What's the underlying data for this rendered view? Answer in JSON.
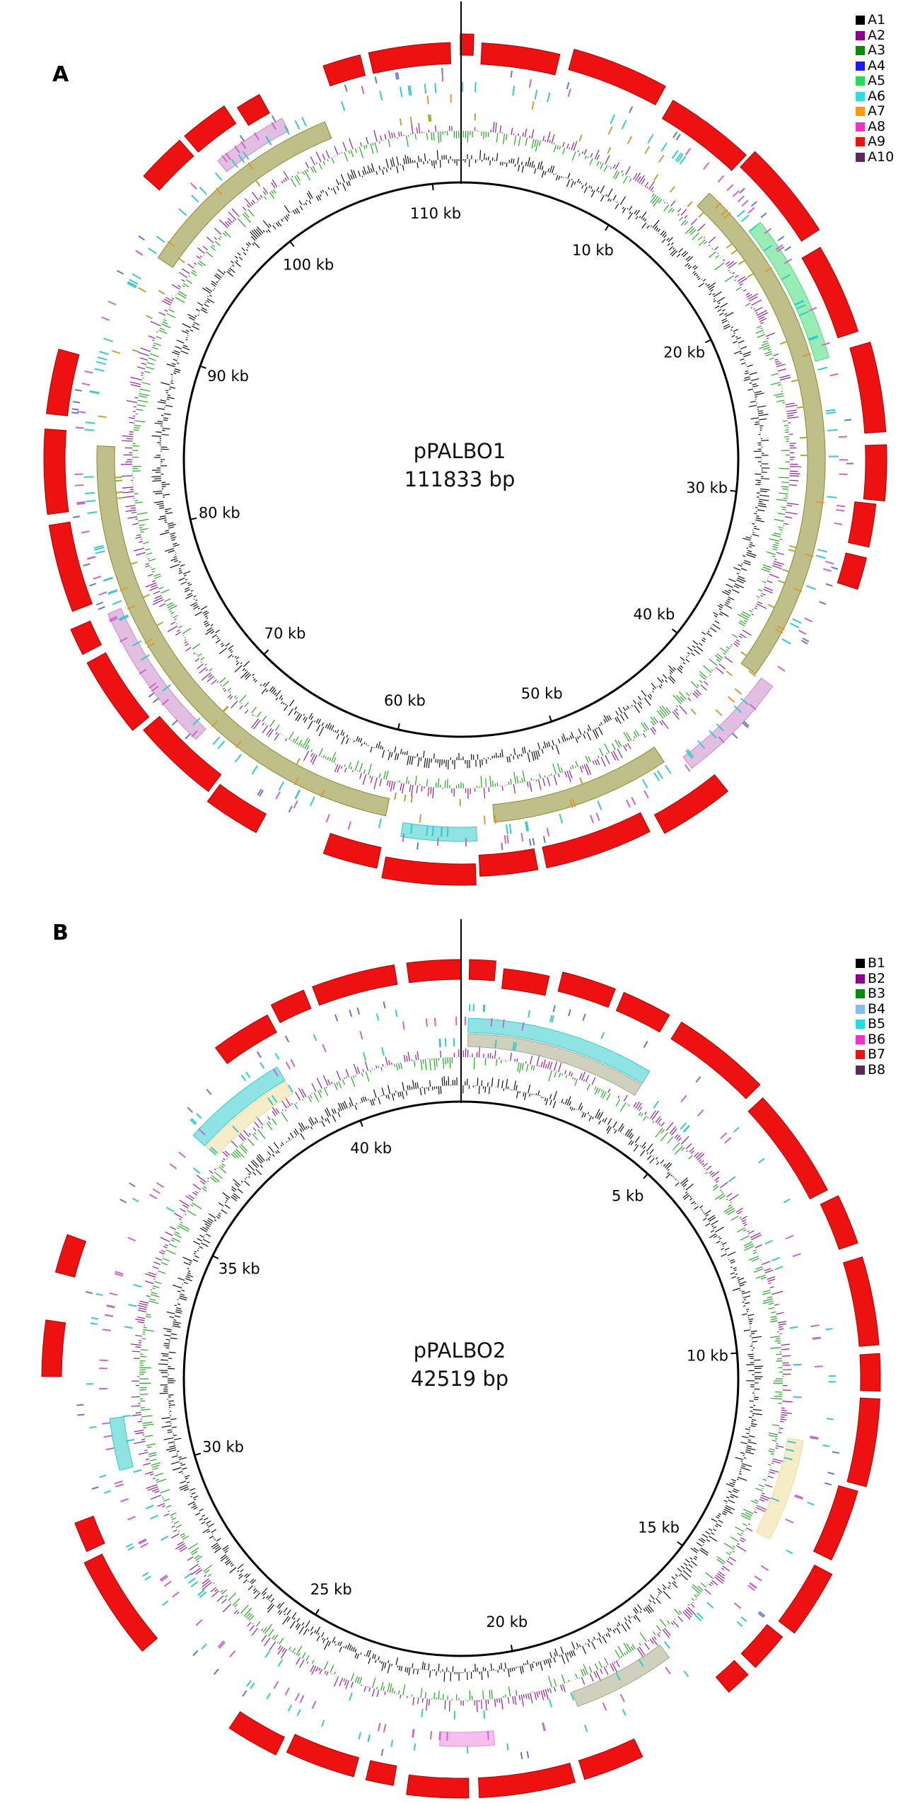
{
  "panels": [
    {
      "letter": "A",
      "plasmid_name": "pPALBO1",
      "length_label": "111833 bp",
      "length_bp": 111833,
      "tick_labels": [
        "10 kb",
        "20 kb",
        "30 kb",
        "40 kb",
        "50 kb",
        "60 kb",
        "70 kb",
        "80 kb",
        "90 kb",
        "100 kb",
        "110 kb"
      ],
      "tick_kb": [
        10,
        20,
        30,
        40,
        50,
        60,
        70,
        80,
        90,
        100,
        110
      ],
      "legend": [
        {
          "label": "A1",
          "color": "#000000"
        },
        {
          "label": "A2",
          "color": "#8b008b"
        },
        {
          "label": "A3",
          "color": "#0a8a0a"
        },
        {
          "label": "A4",
          "color": "#1a1aff"
        },
        {
          "label": "A5",
          "color": "#22dd55"
        },
        {
          "label": "A6",
          "color": "#33dddd"
        },
        {
          "label": "A7",
          "color": "#ff9900"
        },
        {
          "label": "A8",
          "color": "#ee33cc"
        },
        {
          "label": "A9",
          "color": "#ee1111"
        },
        {
          "label": "A10",
          "color": "#5a2a5a"
        }
      ]
    },
    {
      "letter": "B",
      "plasmid_name": "pPALBO2",
      "length_label": "42519 bp",
      "length_bp": 42519,
      "tick_labels": [
        "5 kb",
        "10 kb",
        "15 kb",
        "20 kb",
        "25 kb",
        "30 kb",
        "35 kb",
        "40 kb"
      ],
      "tick_kb": [
        5,
        10,
        15,
        20,
        25,
        30,
        35,
        40
      ],
      "legend": [
        {
          "label": "B1",
          "color": "#000000"
        },
        {
          "label": "B2",
          "color": "#8b008b"
        },
        {
          "label": "B3",
          "color": "#0a8a0a"
        },
        {
          "label": "B4",
          "color": "#88bbee"
        },
        {
          "label": "B5",
          "color": "#22dddd"
        },
        {
          "label": "B6",
          "color": "#ee33cc"
        },
        {
          "label": "B7",
          "color": "#ee1111"
        },
        {
          "label": "B8",
          "color": "#5a2a5a"
        }
      ]
    }
  ]
}
